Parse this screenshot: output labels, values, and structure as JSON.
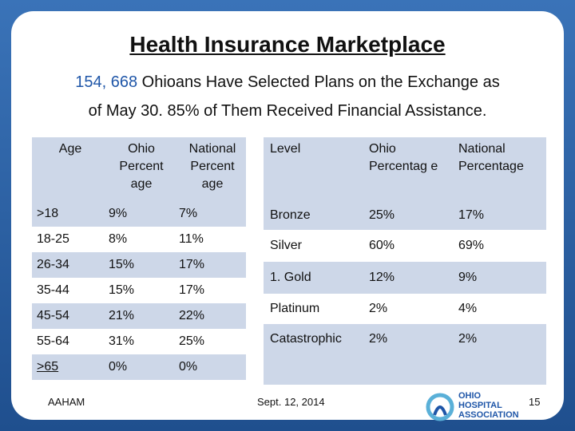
{
  "title": "Health Insurance Marketplace",
  "subtitle": {
    "count": "154, 668",
    "line1_rest": " Ohioans Have Selected Plans on the Exchange as",
    "line2": "of May 30. 85% of Them Received Financial Assistance."
  },
  "age_table": {
    "headers": [
      "Age",
      "Ohio Percent age",
      "National Percent age"
    ],
    "rows": [
      [
        ">18",
        "9%",
        "7%"
      ],
      [
        "18-25",
        "8%",
        "11%"
      ],
      [
        "26-34",
        "15%",
        "17%"
      ],
      [
        "35-44",
        "15%",
        "17%"
      ],
      [
        "45-54",
        "21%",
        "22%"
      ],
      [
        "55-64",
        "31%",
        "25%"
      ],
      [
        ">65",
        "0%",
        "0%"
      ]
    ]
  },
  "level_table": {
    "headers": [
      "Level",
      "Ohio Percentag e",
      "National Percentage"
    ],
    "rows": [
      [
        "Bronze",
        "25%",
        "17%"
      ],
      [
        "Silver",
        "60%",
        "69%"
      ],
      [
        "1.  Gold",
        "12%",
        "9%"
      ],
      [
        "Platinum",
        "2%",
        "4%"
      ],
      [
        "Catastrophic",
        "2%",
        "2%"
      ]
    ]
  },
  "footer": {
    "left": "AAHAM",
    "center": "Sept. 12, 2014",
    "page": "15",
    "logo_line1": "OHIO",
    "logo_line2": "HOSPITAL",
    "logo_line3": "ASSOCIATION"
  },
  "colors": {
    "accent": "#1f56a8",
    "band": "#cdd7e8",
    "frame": "#2a5f9e"
  }
}
